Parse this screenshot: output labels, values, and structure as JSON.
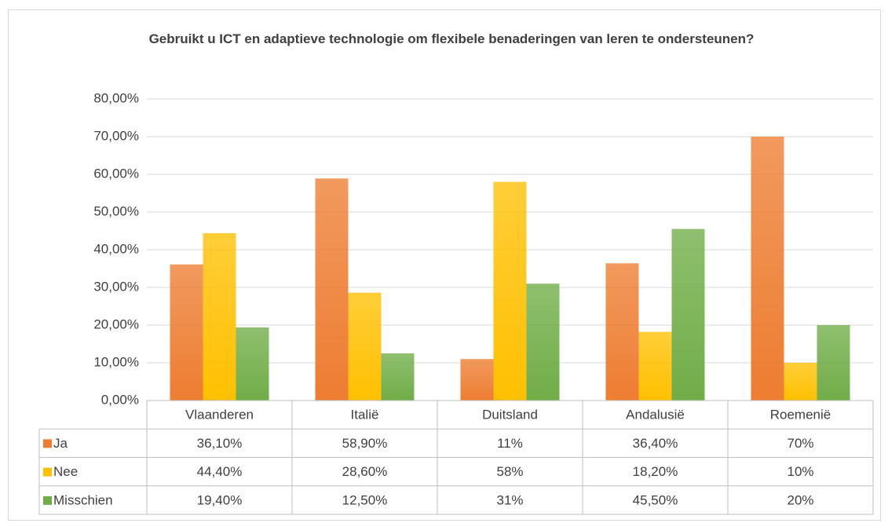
{
  "chart_data": {
    "type": "bar",
    "title": "Gebruikt u ICT en adaptieve technologie om flexibele benaderingen van leren te ondersteunen?",
    "categories": [
      "Vlaanderen",
      "Italië",
      "Duitsland",
      "Andalusië",
      "Roemenië"
    ],
    "series": [
      {
        "name": "Ja",
        "color": "#ed7d31",
        "values": [
          36.1,
          58.9,
          11,
          36.4,
          70
        ],
        "value_labels": [
          "36,10%",
          "58,90%",
          "11%",
          "36,40%",
          "70%"
        ]
      },
      {
        "name": "Nee",
        "color": "#ffc000",
        "values": [
          44.4,
          28.6,
          58,
          18.2,
          10
        ],
        "value_labels": [
          "44,40%",
          "28,60%",
          "58%",
          "18,20%",
          "10%"
        ]
      },
      {
        "name": "Misschien",
        "color": "#70ad47",
        "values": [
          19.4,
          12.5,
          31,
          45.5,
          20
        ],
        "value_labels": [
          "19,40%",
          "12,50%",
          "31%",
          "45,50%",
          "20%"
        ]
      }
    ],
    "ylim": [
      0,
      80
    ],
    "yticks": [
      {
        "value": 0,
        "label": "0,00%"
      },
      {
        "value": 10,
        "label": "10,00%"
      },
      {
        "value": 20,
        "label": "20,00%"
      },
      {
        "value": 30,
        "label": "30,00%"
      },
      {
        "value": 40,
        "label": "40,00%"
      },
      {
        "value": 50,
        "label": "50,00%"
      },
      {
        "value": 60,
        "label": "60,00%"
      },
      {
        "value": 70,
        "label": "70,00%"
      },
      {
        "value": 80,
        "label": "80,00%"
      }
    ],
    "grid": true
  }
}
